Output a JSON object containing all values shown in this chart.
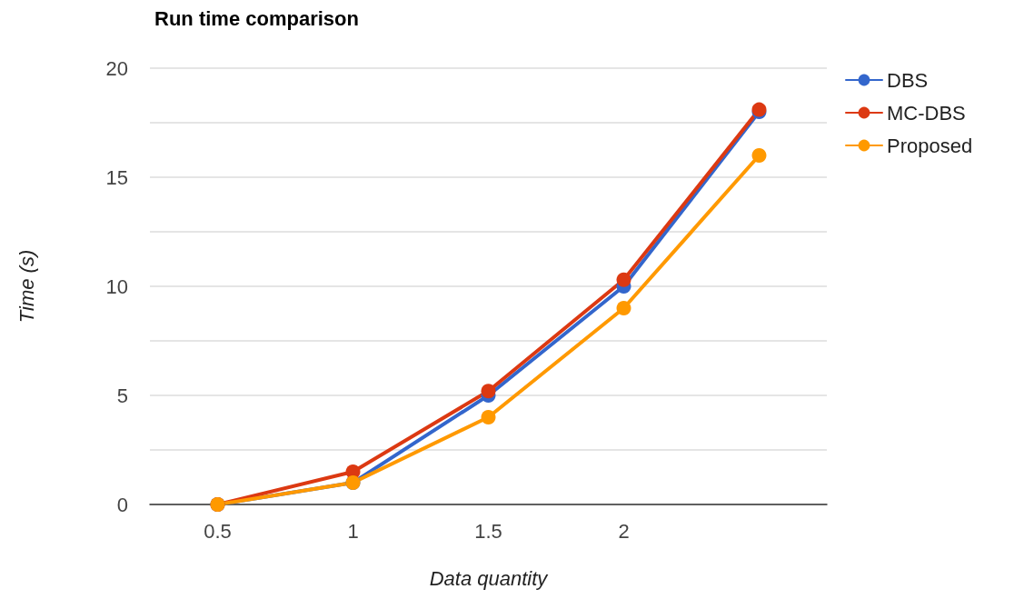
{
  "chart_data": {
    "type": "line",
    "title": "Run time comparison",
    "xlabel": "Data quantity",
    "ylabel": "Time (s)",
    "categories": [
      "0.5",
      "1",
      "1.5",
      "2",
      null
    ],
    "series": [
      {
        "name": "DBS",
        "color": "#3366cc",
        "values": [
          0,
          1,
          5,
          10,
          18
        ]
      },
      {
        "name": "MC-DBS",
        "color": "#dc3912",
        "values": [
          0,
          1.5,
          5.2,
          10.3,
          18.1
        ]
      },
      {
        "name": "Proposed",
        "color": "#ff9900",
        "values": [
          0,
          1,
          4,
          9,
          16
        ]
      }
    ],
    "ylim": [
      0,
      20
    ],
    "yticks": [
      0,
      {
        "value": 2.5,
        "label": null
      },
      5,
      {
        "value": 7.5,
        "label": null
      },
      10,
      {
        "value": 12.5,
        "label": null
      },
      15,
      {
        "value": 17.5,
        "label": null
      },
      20
    ],
    "grid": "y",
    "legend": "top right",
    "marker": "circle",
    "line_style": "solid"
  }
}
